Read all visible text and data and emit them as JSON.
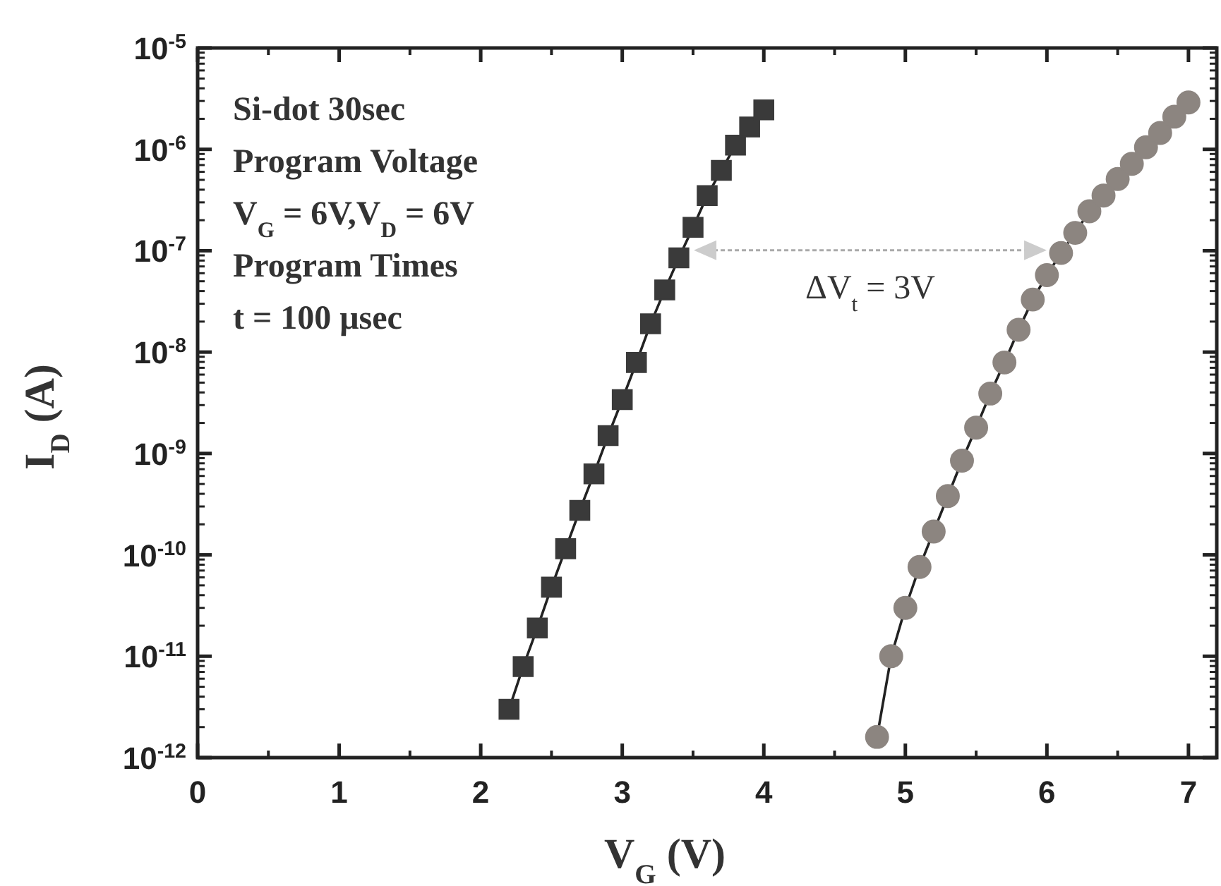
{
  "chart_data": {
    "type": "line",
    "xlabel": "V$_{G}$ (V)",
    "ylabel": "I$_{D}$ (A)",
    "log": "y",
    "grid": false,
    "line_style": "solid",
    "xlim": [
      0,
      7.2
    ],
    "xticks": [
      0,
      1,
      2,
      3,
      4,
      5,
      6,
      7
    ],
    "ylim": [
      1e-12,
      1e-05
    ],
    "yticks": [
      {
        "value": 1e-12,
        "label": "10$^{-12}$"
      },
      {
        "value": 1e-11,
        "label": "10$^{-11}$"
      },
      {
        "value": 1e-10,
        "label": "10$^{-10}$"
      },
      {
        "value": 1e-09,
        "label": "10$^{-9}$"
      },
      {
        "value": 1e-08,
        "label": "10$^{-8}$"
      },
      {
        "value": 1e-07,
        "label": "10$^{-7}$"
      },
      {
        "value": 1e-06,
        "label": "10$^{-6}$"
      },
      {
        "value": 1e-05,
        "label": "10$^{-5}$"
      }
    ],
    "series": [
      {
        "color": "#3a3a3a",
        "marker": "square",
        "x": [
          2.2,
          2.3,
          2.4,
          2.5,
          2.6,
          2.7,
          2.8,
          2.9,
          3.0,
          3.1,
          3.2,
          3.3,
          3.4,
          3.5,
          3.6,
          3.7,
          3.8,
          3.9,
          4.0
        ],
        "values": [
          3e-12,
          7.9e-12,
          1.9e-11,
          4.8e-11,
          1.15e-10,
          2.75e-10,
          6.3e-10,
          1.5e-09,
          3.4e-09,
          7.9e-09,
          1.9e-08,
          4.1e-08,
          8.5e-08,
          1.7e-07,
          3.5e-07,
          6.2e-07,
          1.1e-06,
          1.66e-06,
          2.45e-06
        ]
      },
      {
        "color": "#8c8580",
        "marker": "circle",
        "x": [
          4.8,
          4.9,
          5.0,
          5.1,
          5.2,
          5.3,
          5.4,
          5.5,
          5.6,
          5.7,
          5.8,
          5.9,
          6.0,
          6.1,
          6.2,
          6.3,
          6.4,
          6.5,
          6.6,
          6.7,
          6.8,
          6.9,
          7.0
        ],
        "values": [
          1.6e-12,
          1e-11,
          3e-11,
          7.6e-11,
          1.7e-10,
          3.8e-10,
          8.5e-10,
          1.8e-09,
          3.9e-09,
          7.9e-09,
          1.66e-08,
          3.3e-08,
          5.75e-08,
          9.5e-08,
          1.5e-07,
          2.45e-07,
          3.5e-07,
          5.1e-07,
          7.2e-07,
          1.05e-06,
          1.45e-06,
          2.1e-06,
          2.9e-06
        ]
      }
    ],
    "annotations": [
      "Si-dot 30sec",
      "Program Voltage",
      "V$_{G}$ = 6V,V$_{D}$ = 6V",
      "Program Times",
      "t = 100 μsec",
      "ΔV$_{t}$ = 3V"
    ]
  }
}
